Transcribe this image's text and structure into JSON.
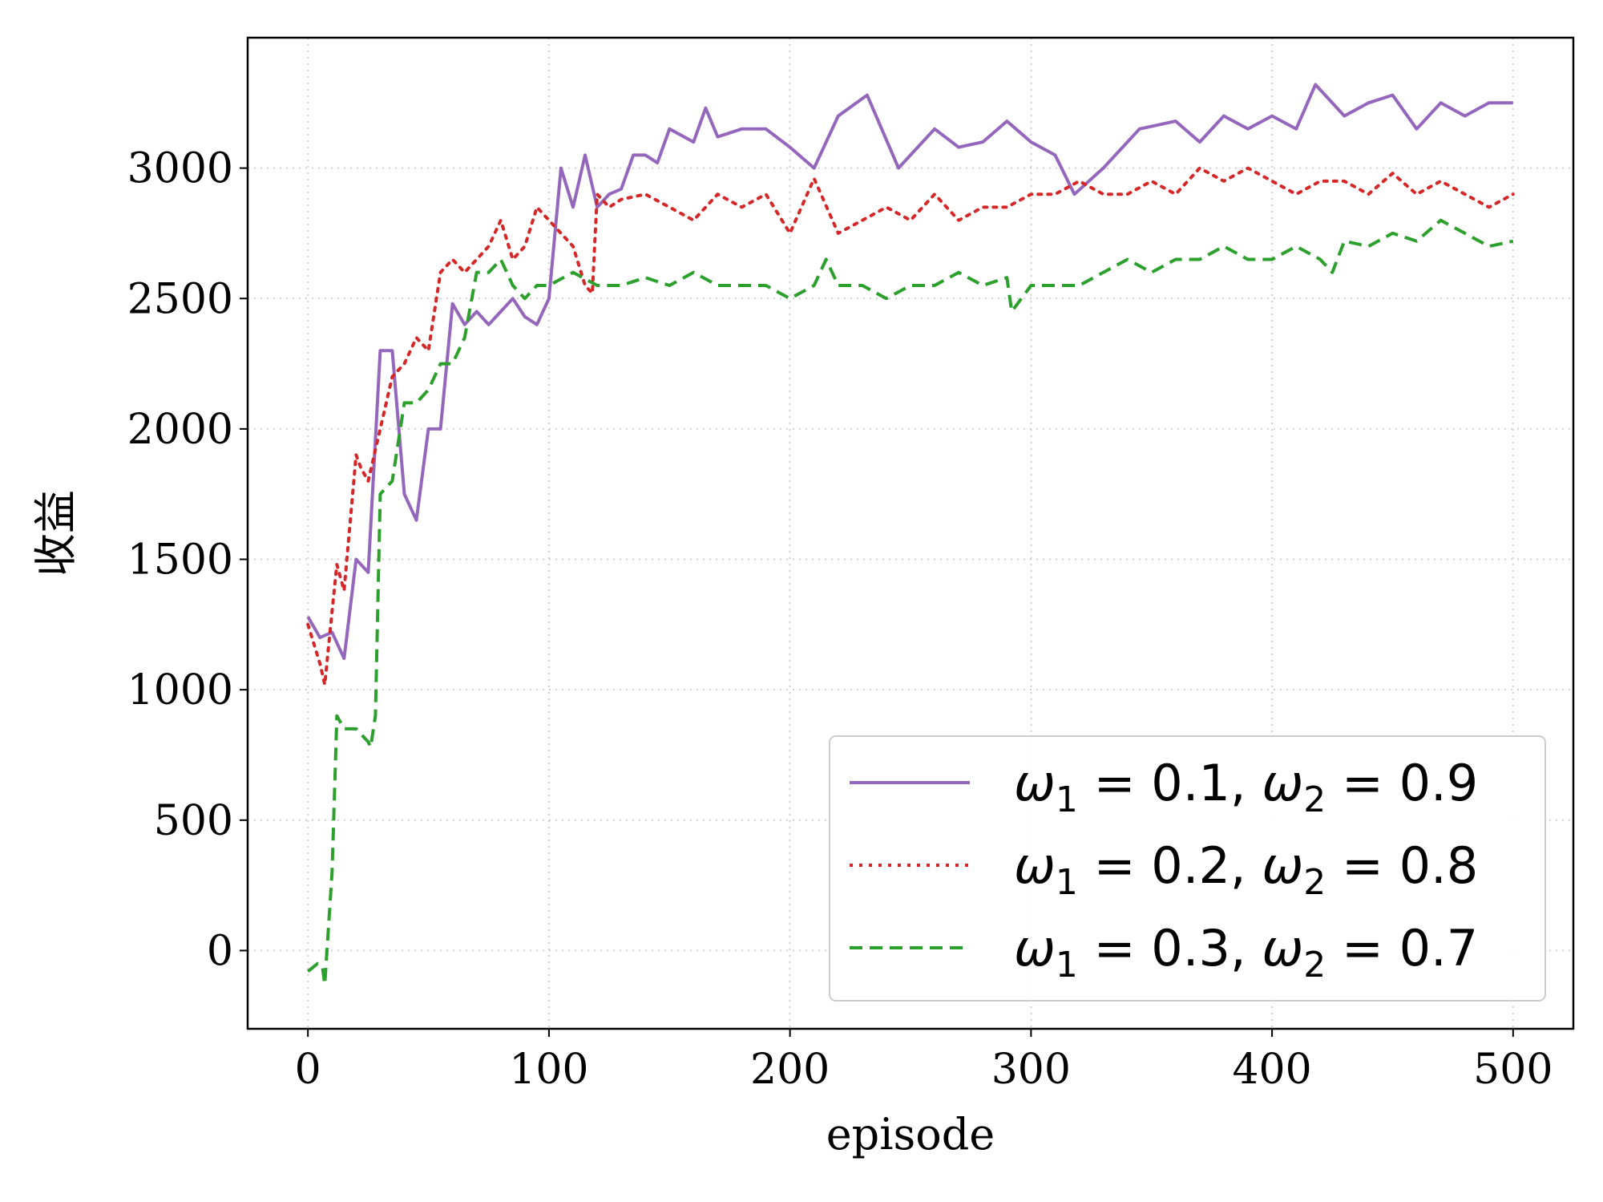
{
  "chart_data": {
    "type": "line",
    "title": "",
    "xlabel": "episode",
    "ylabel": "收益",
    "xlim": [
      -25,
      525
    ],
    "ylim": [
      -300,
      3500
    ],
    "xticks": [
      0,
      100,
      200,
      300,
      400,
      500
    ],
    "yticks": [
      0,
      500,
      1000,
      1500,
      2000,
      2500,
      3000
    ],
    "xtick_labels": [
      "0",
      "100",
      "200",
      "300",
      "400",
      "500"
    ],
    "ytick_labels": [
      "0",
      "500",
      "1000",
      "1500",
      "2000",
      "2500",
      "3000"
    ],
    "grid": true,
    "legend_position": "lower-right",
    "series": [
      {
        "name": "ω1 = 0.1, ω2 = 0.9",
        "label_parts": {
          "w1": "ω",
          "sub1": "1",
          "mid1": " = 0.1, ",
          "w2": "ω",
          "sub2": "2",
          "mid2": " = 0.9"
        },
        "color": "#9467bd",
        "style": "solid",
        "x": [
          0,
          5,
          10,
          15,
          20,
          25,
          30,
          35,
          40,
          45,
          50,
          55,
          60,
          65,
          70,
          75,
          80,
          85,
          90,
          95,
          100,
          105,
          110,
          115,
          120,
          125,
          130,
          135,
          140,
          145,
          150,
          160,
          165,
          170,
          180,
          190,
          200,
          210,
          220,
          232,
          245,
          260,
          270,
          280,
          290,
          300,
          310,
          318,
          330,
          345,
          360,
          370,
          380,
          390,
          400,
          410,
          418,
          430,
          440,
          450,
          460,
          470,
          480,
          490,
          500
        ],
        "values": [
          1280,
          1200,
          1220,
          1120,
          1500,
          1450,
          2300,
          2300,
          1750,
          1650,
          2000,
          2000,
          2480,
          2400,
          2450,
          2400,
          2450,
          2500,
          2430,
          2400,
          2500,
          3000,
          2850,
          3050,
          2850,
          2900,
          2920,
          3050,
          3050,
          3020,
          3150,
          3100,
          3230,
          3120,
          3150,
          3150,
          3080,
          3000,
          3200,
          3280,
          3000,
          3150,
          3080,
          3100,
          3180,
          3100,
          3050,
          2900,
          3000,
          3150,
          3180,
          3100,
          3200,
          3150,
          3200,
          3150,
          3320,
          3200,
          3250,
          3280,
          3150,
          3250,
          3200,
          3250,
          3250
        ]
      },
      {
        "name": "ω1 = 0.2, ω2 = 0.8",
        "label_parts": {
          "w1": "ω",
          "sub1": "1",
          "mid1": " = 0.2, ",
          "w2": "ω",
          "sub2": "2",
          "mid2": " = 0.8"
        },
        "color": "#d62728",
        "style": "dotted",
        "x": [
          0,
          5,
          7,
          10,
          12,
          15,
          20,
          22,
          25,
          30,
          35,
          40,
          45,
          50,
          55,
          60,
          65,
          70,
          75,
          80,
          85,
          90,
          95,
          100,
          105,
          110,
          115,
          118,
          120,
          125,
          130,
          140,
          150,
          160,
          170,
          180,
          190,
          200,
          210,
          220,
          230,
          240,
          250,
          260,
          270,
          280,
          290,
          300,
          310,
          320,
          330,
          340,
          350,
          360,
          370,
          380,
          390,
          400,
          410,
          420,
          430,
          440,
          450,
          460,
          470,
          480,
          490,
          500
        ],
        "values": [
          1250,
          1100,
          1020,
          1300,
          1480,
          1380,
          1900,
          1850,
          1800,
          2000,
          2200,
          2250,
          2350,
          2300,
          2600,
          2650,
          2600,
          2650,
          2700,
          2800,
          2650,
          2700,
          2850,
          2800,
          2750,
          2700,
          2550,
          2520,
          2900,
          2850,
          2880,
          2900,
          2850,
          2800,
          2900,
          2850,
          2900,
          2750,
          2960,
          2750,
          2800,
          2850,
          2800,
          2900,
          2800,
          2850,
          2850,
          2900,
          2900,
          2950,
          2900,
          2900,
          2950,
          2900,
          3000,
          2950,
          3000,
          2950,
          2900,
          2950,
          2950,
          2900,
          2980,
          2900,
          2950,
          2900,
          2850,
          2900
        ]
      },
      {
        "name": "ω1 = 0.3, ω2 = 0.7",
        "label_parts": {
          "w1": "ω",
          "sub1": "1",
          "mid1": " = 0.3, ",
          "w2": "ω",
          "sub2": "2",
          "mid2": " = 0.7"
        },
        "color": "#2ca02c",
        "style": "dashed",
        "x": [
          0,
          4,
          6,
          7,
          10,
          12,
          15,
          20,
          25,
          26,
          28,
          30,
          35,
          40,
          45,
          50,
          55,
          60,
          65,
          70,
          75,
          80,
          85,
          90,
          95,
          100,
          110,
          120,
          130,
          140,
          150,
          160,
          170,
          180,
          190,
          200,
          210,
          215,
          220,
          230,
          240,
          250,
          260,
          270,
          280,
          290,
          292,
          300,
          310,
          320,
          330,
          340,
          350,
          360,
          370,
          380,
          390,
          400,
          410,
          420,
          425,
          430,
          440,
          450,
          460,
          470,
          480,
          490,
          500
        ],
        "values": [
          -80,
          -50,
          -60,
          -130,
          300,
          900,
          850,
          850,
          800,
          780,
          900,
          1750,
          1800,
          2100,
          2100,
          2150,
          2250,
          2250,
          2350,
          2600,
          2600,
          2650,
          2550,
          2500,
          2550,
          2550,
          2600,
          2550,
          2550,
          2580,
          2550,
          2600,
          2550,
          2550,
          2550,
          2500,
          2550,
          2650,
          2550,
          2550,
          2500,
          2550,
          2550,
          2600,
          2550,
          2580,
          2450,
          2550,
          2550,
          2550,
          2600,
          2650,
          2600,
          2650,
          2650,
          2700,
          2650,
          2650,
          2700,
          2650,
          2600,
          2720,
          2700,
          2750,
          2720,
          2800,
          2750,
          2700,
          2720
        ]
      }
    ]
  }
}
